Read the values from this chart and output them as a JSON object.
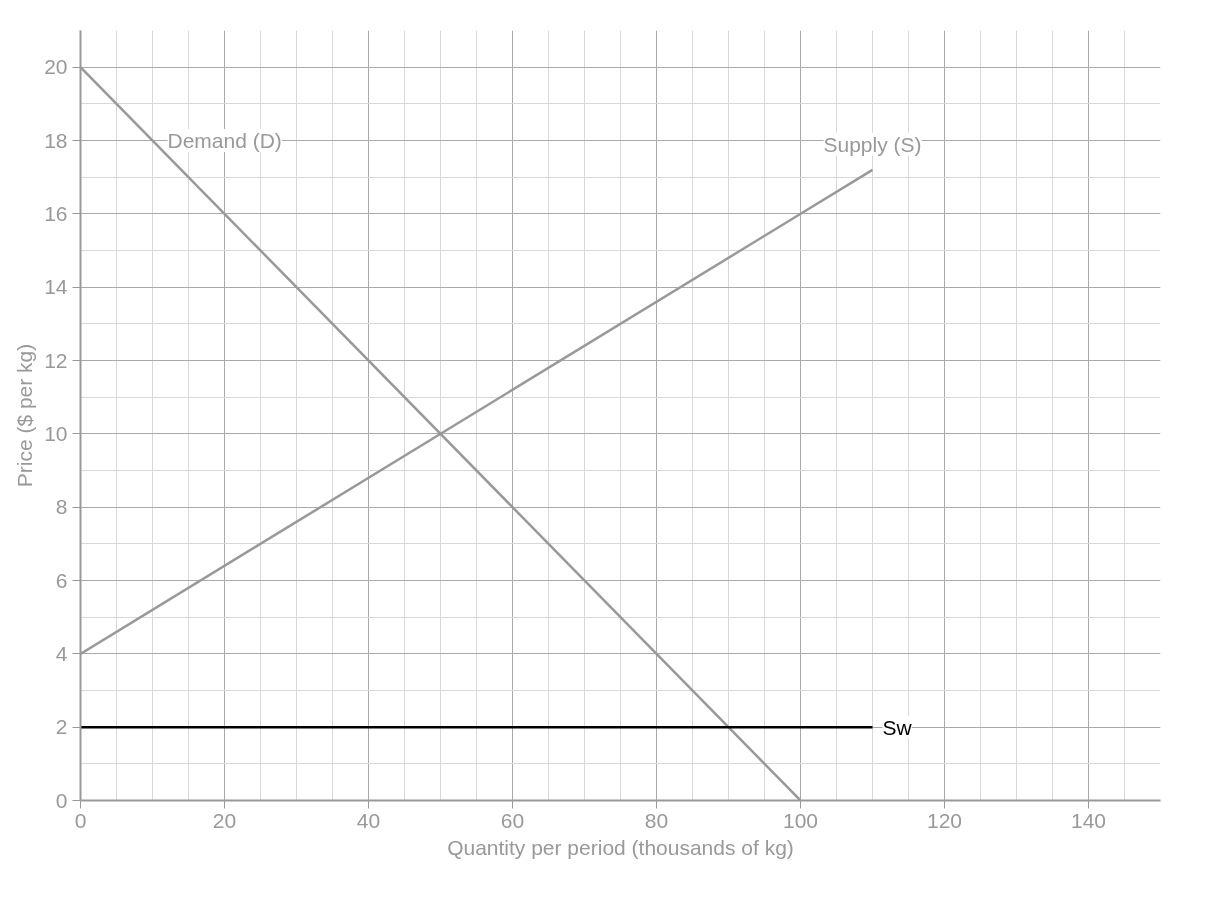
{
  "chart_data": {
    "type": "line",
    "xlabel": "Quantity per period (thousands of kg)",
    "ylabel": "Price ($ per kg)",
    "xlim": [
      0,
      150
    ],
    "ylim": [
      0,
      21
    ],
    "xticks": [
      0,
      20,
      40,
      60,
      80,
      100,
      120,
      140
    ],
    "yticks": [
      0,
      2,
      4,
      6,
      8,
      10,
      12,
      14,
      16,
      18,
      20
    ],
    "grid": true,
    "marker": "none",
    "line_style": "solid",
    "series": [
      {
        "name": "Demand (D)",
        "color": "#999999",
        "x": [
          0,
          100
        ],
        "values": [
          20,
          0
        ]
      },
      {
        "name": "Supply (S)",
        "color": "#999999",
        "x": [
          0,
          110
        ],
        "values": [
          4,
          17.2
        ]
      },
      {
        "name": "Sw",
        "color": "#000000",
        "x": [
          0,
          110
        ],
        "values": [
          2,
          2
        ]
      }
    ]
  }
}
